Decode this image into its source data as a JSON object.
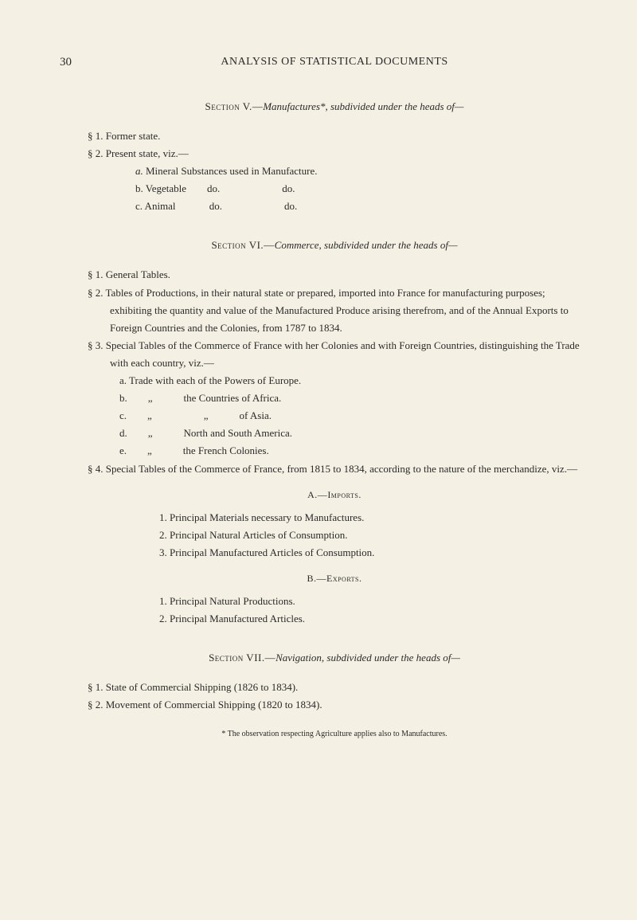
{
  "page_number": "30",
  "header": "ANALYSIS OF STATISTICAL DOCUMENTS",
  "sectionV": {
    "label": "Section V.—",
    "title": "Manufactures*, subdivided under the heads of—",
    "item1": "§ 1. Former state.",
    "item2": "§ 2. Present state, viz.—",
    "sub_a": "a. Mineral Substances used in Manufacture.",
    "sub_b": "b. Vegetable  do.      do.",
    "sub_c": "c. Animal    do.      do."
  },
  "sectionVI": {
    "label": "Section VI.—",
    "title": "Commerce, subdivided under the heads of—",
    "item1": "§ 1. General Tables.",
    "item2": "§ 2. Tables of Productions, in their natural state or prepared, imported into France for manufacturing purposes; exhibiting the quantity and value of the Manufactured Produce arising therefrom, and of the Annual Exports to Foreign Countries and the Colonies, from 1787 to 1834.",
    "item3": "§ 3. Special Tables of the Commerce of France with her Colonies and with Foreign Countries, distinguishing the Trade with each country, viz.—",
    "sub3_a": "a. Trade with each of the Powers of Europe.",
    "sub3_b": "b.  „   the Countries of Africa.",
    "sub3_c": "c.  „     „   of Asia.",
    "sub3_d": "d.  „   North and South America.",
    "sub3_e": "e.  „   the French Colonies.",
    "item4": "§ 4. Special Tables of the Commerce of France, from 1815 to 1834, according to the nature of the merchandize, viz.—",
    "sub_A_label": "A.—Imports.",
    "sub_A_1": "1. Principal Materials necessary to Manufactures.",
    "sub_A_2": "2. Principal Natural Articles of Consumption.",
    "sub_A_3": "3. Principal Manufactured Articles of Consumption.",
    "sub_B_label": "B.—Exports.",
    "sub_B_1": "1. Principal Natural Productions.",
    "sub_B_2": "2. Principal Manufactured Articles."
  },
  "sectionVII": {
    "label": "Section VII.—",
    "title": "Navigation, subdivided under the heads of—",
    "item1": "§ 1. State of Commercial Shipping (1826 to 1834).",
    "item2": "§ 2. Movement of Commercial Shipping (1820 to 1834)."
  },
  "footnote": "* The observation respecting Agriculture applies also to Manufactures."
}
